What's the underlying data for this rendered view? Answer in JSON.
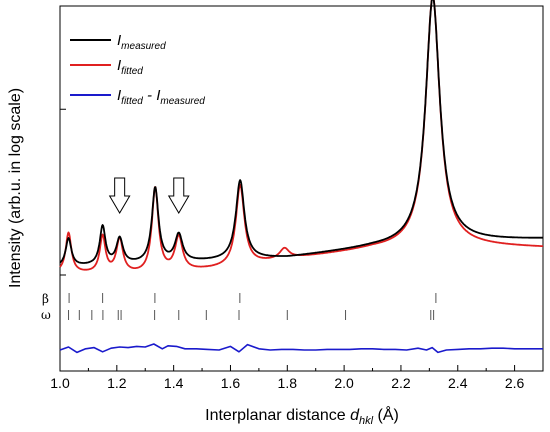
{
  "chart_data": {
    "type": "line",
    "xlabel": "Interplanar distance ",
    "xlabel_symbol": "d",
    "xlabel_subscript": "hkl",
    "xlabel_unit": " (Å)",
    "ylabel": "Intensity (arb.u. in log scale)",
    "xlim": [
      1.0,
      2.7
    ],
    "x_ticks": [
      "1.0",
      "1.2",
      "1.4",
      "1.6",
      "1.8",
      "2.0",
      "2.2",
      "2.4",
      "2.6"
    ],
    "y_log_scale": true,
    "y_tick_labels_shown": false,
    "grid": false,
    "legend_position": "top-left",
    "series": [
      {
        "name": "I",
        "name_sub": "measured",
        "color": "#000000",
        "peaks": [
          {
            "x": 1.03,
            "h": 0.33,
            "w": 0.012
          },
          {
            "x": 1.15,
            "h": 0.45,
            "w": 0.012
          },
          {
            "x": 1.21,
            "h": 0.3,
            "w": 0.014
          },
          {
            "x": 1.335,
            "h": 0.88,
            "w": 0.014
          },
          {
            "x": 1.418,
            "h": 0.32,
            "w": 0.016
          },
          {
            "x": 1.634,
            "h": 0.93,
            "w": 0.018
          },
          {
            "x": 1.79,
            "h": 0.0,
            "w": 0.02
          },
          {
            "x": 2.312,
            "h": 2.9,
            "w": 0.03
          }
        ],
        "baseline": [
          [
            1.0,
            0.15
          ],
          [
            1.4,
            0.2
          ],
          [
            1.8,
            0.26
          ],
          [
            2.1,
            0.38
          ],
          [
            2.4,
            0.45
          ],
          [
            2.7,
            0.48
          ]
        ]
      },
      {
        "name": "I",
        "name_sub": "fitted",
        "color": "#e02020",
        "peaks": [
          {
            "x": 1.03,
            "h": 0.47,
            "w": 0.012
          },
          {
            "x": 1.15,
            "h": 0.43,
            "w": 0.012
          },
          {
            "x": 1.21,
            "h": 0.4,
            "w": 0.014
          },
          {
            "x": 1.335,
            "h": 1.0,
            "w": 0.014
          },
          {
            "x": 1.418,
            "h": 0.4,
            "w": 0.016
          },
          {
            "x": 1.634,
            "h": 0.95,
            "w": 0.018
          },
          {
            "x": 1.79,
            "h": 0.12,
            "w": 0.02
          },
          {
            "x": 2.312,
            "h": 2.95,
            "w": 0.03
          }
        ],
        "baseline": [
          [
            1.0,
            0.08
          ],
          [
            1.3,
            0.06
          ],
          [
            1.6,
            0.14
          ],
          [
            1.8,
            0.24
          ],
          [
            2.1,
            0.36
          ],
          [
            2.4,
            0.4
          ],
          [
            2.7,
            0.38
          ]
        ]
      },
      {
        "name": "I",
        "name_sub": "fitted",
        "name_joiner": " - ",
        "name_sub2": "measured",
        "color": "#1a1acc",
        "points": [
          [
            1.0,
            0.0
          ],
          [
            1.03,
            0.05
          ],
          [
            1.06,
            -0.04
          ],
          [
            1.09,
            0.02
          ],
          [
            1.12,
            0.04
          ],
          [
            1.15,
            -0.03
          ],
          [
            1.18,
            0.03
          ],
          [
            1.21,
            0.05
          ],
          [
            1.24,
            0.04
          ],
          [
            1.27,
            0.06
          ],
          [
            1.3,
            0.05
          ],
          [
            1.33,
            0.1
          ],
          [
            1.36,
            0.02
          ],
          [
            1.38,
            0.07
          ],
          [
            1.41,
            0.06
          ],
          [
            1.44,
            0.02
          ],
          [
            1.48,
            0.02
          ],
          [
            1.52,
            0.01
          ],
          [
            1.56,
            0.0
          ],
          [
            1.6,
            0.06
          ],
          [
            1.63,
            -0.03
          ],
          [
            1.66,
            0.09
          ],
          [
            1.7,
            0.02
          ],
          [
            1.74,
            0.0
          ],
          [
            1.78,
            0.01
          ],
          [
            1.82,
            0.01
          ],
          [
            1.86,
            0.0
          ],
          [
            1.9,
            0.0
          ],
          [
            1.94,
            0.01
          ],
          [
            1.98,
            0.01
          ],
          [
            2.02,
            0.01
          ],
          [
            2.06,
            0.02
          ],
          [
            2.1,
            0.02
          ],
          [
            2.14,
            0.01
          ],
          [
            2.18,
            0.01
          ],
          [
            2.22,
            0.0
          ],
          [
            2.26,
            0.03
          ],
          [
            2.29,
            0.0
          ],
          [
            2.31,
            0.04
          ],
          [
            2.33,
            -0.04
          ],
          [
            2.36,
            0.0
          ],
          [
            2.4,
            0.01
          ],
          [
            2.44,
            0.02
          ],
          [
            2.48,
            0.02
          ],
          [
            2.52,
            0.03
          ],
          [
            2.56,
            0.03
          ],
          [
            2.6,
            0.02
          ],
          [
            2.64,
            0.02
          ],
          [
            2.7,
            0.02
          ]
        ]
      }
    ],
    "reflection_markers": [
      {
        "phase": "β",
        "positions": [
          1.032,
          1.15,
          1.334,
          1.633,
          2.323
        ]
      },
      {
        "phase": "ω",
        "positions": [
          1.03,
          1.068,
          1.112,
          1.151,
          1.205,
          1.215,
          1.333,
          1.418,
          1.515,
          1.63,
          1.8,
          2.005,
          2.305,
          2.315
        ]
      }
    ],
    "annotations": [
      {
        "type": "arrow",
        "direction": "down",
        "x": 1.21
      },
      {
        "type": "arrow",
        "direction": "down",
        "x": 1.418
      }
    ]
  }
}
